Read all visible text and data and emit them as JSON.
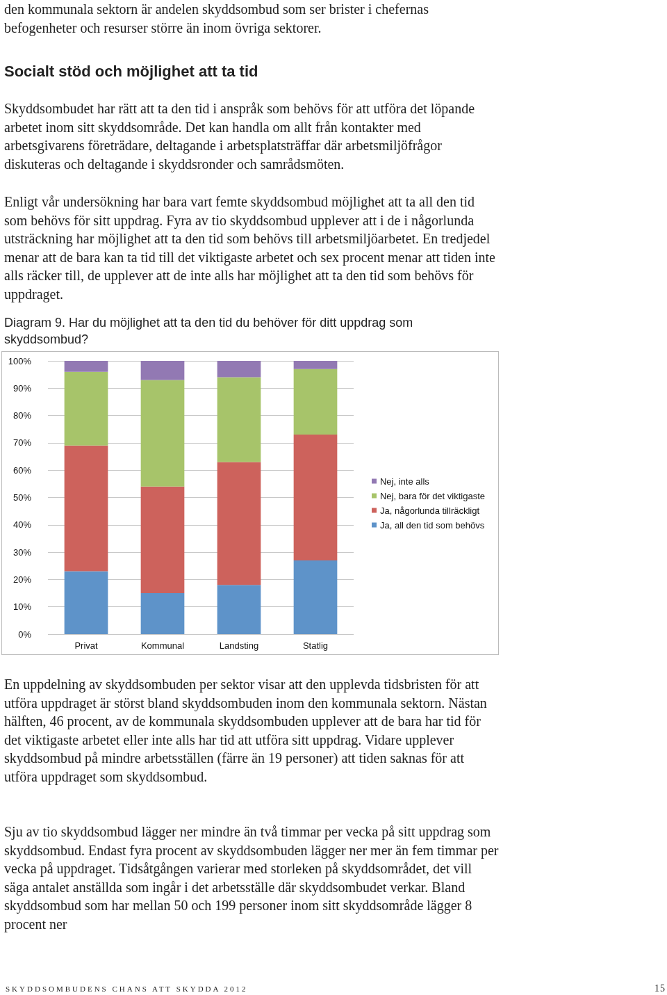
{
  "chart_data": {
    "type": "bar",
    "title": "Diagram 9. Har du möjlighet att ta den tid du behöver för ditt uppdrag som skyddsombud?",
    "categories": [
      "Privat",
      "Kommunal",
      "Landsting",
      "Statlig"
    ],
    "stacked": true,
    "series": [
      {
        "name": "Ja, all den tid som behövs",
        "color": "#5e93c9",
        "values": [
          23,
          15,
          18,
          27
        ]
      },
      {
        "name": "Ja, någorlunda tillräckligt",
        "color": "#cd625c",
        "values": [
          46,
          39,
          45,
          46
        ]
      },
      {
        "name": "Nej, bara för det viktigaste",
        "color": "#a7c46a",
        "values": [
          27,
          39,
          31,
          24
        ]
      },
      {
        "name": "Nej, inte alls",
        "color": "#9279b3",
        "values": [
          4,
          7,
          6,
          3
        ]
      }
    ],
    "ylim": [
      0,
      100
    ],
    "yticks": [
      {
        "value": 0,
        "label": "0%"
      },
      {
        "value": 10,
        "label": "10%"
      },
      {
        "value": 20,
        "label": "20%"
      },
      {
        "value": 30,
        "label": "30%"
      },
      {
        "value": 40,
        "label": "40%"
      },
      {
        "value": 50,
        "label": "50%"
      },
      {
        "value": 60,
        "label": "60%"
      },
      {
        "value": 70,
        "label": "70%"
      },
      {
        "value": 80,
        "label": "80%"
      },
      {
        "value": 90,
        "label": "90%"
      },
      {
        "value": 100,
        "label": "100%"
      }
    ],
    "grid": "y",
    "legend": "right",
    "annotations": [
      "den kommunala sektorn är andelen skyddsombud som ser brister i chefernas befogenheter och resurser större än inom övriga sektorer.",
      "Socialt stöd och möjlighet att ta tid",
      "Skyddsombudet har rätt att ta den tid i anspråk som behövs för att utföra det löpande arbetet inom sitt skyddsområde. Det kan handla om allt från kontakter med arbetsgivarens företrädare, deltagande i arbetsplatsträffar där arbetsmiljöfrågor diskuteras och deltagande i skyddsronder och samrådsmöten.",
      "Enligt vår undersökning har bara vart femte skyddsombud möjlighet att ta all den tid som behövs för sitt uppdrag. Fyra av tio skyddsombud upplever att i de i någorlunda utsträckning har möjlighet att ta den tid som behövs till arbetsmiljöarbetet. En tredjedel menar att de bara kan ta tid till det viktigaste arbetet och sex procent menar att tiden inte alls räcker till, de upplever att de inte alls har möjlighet att ta den tid som behövs för uppdraget.",
      "En uppdelning av skyddsombuden per sektor visar att den upplevda tidsbristen för att utföra uppdraget är störst bland skyddsombuden inom den kommunala sektorn. Nästan hälften, 46 procent, av de kommunala skyddsombuden upplever att de bara har tid för det viktigaste arbetet eller inte alls har tid att utföra sitt uppdrag. Vidare upplever skyddsombud på mindre arbetsställen (färre än 19 personer) att tiden saknas för att utföra uppdraget som skyddsombud.",
      "Sju av tio skyddsombud lägger ner mindre än två timmar per vecka på sitt uppdrag som skyddsombud. Endast fyra procent av skyddsombuden lägger ner mer än fem timmar per vecka på uppdraget. Tidsåtgången varierar med storleken på skyddsområdet, det vill säga antalet anställda som ingår i det arbetsställe där skyddsombudet verkar. Bland skyddsombud som har mellan 50 och 199 personer inom sitt skyddsområde lägger 8 procent ner",
      "SKYDDSOMBUDENS CHANS ATT SKYDDA 2012",
      "15"
    ]
  }
}
